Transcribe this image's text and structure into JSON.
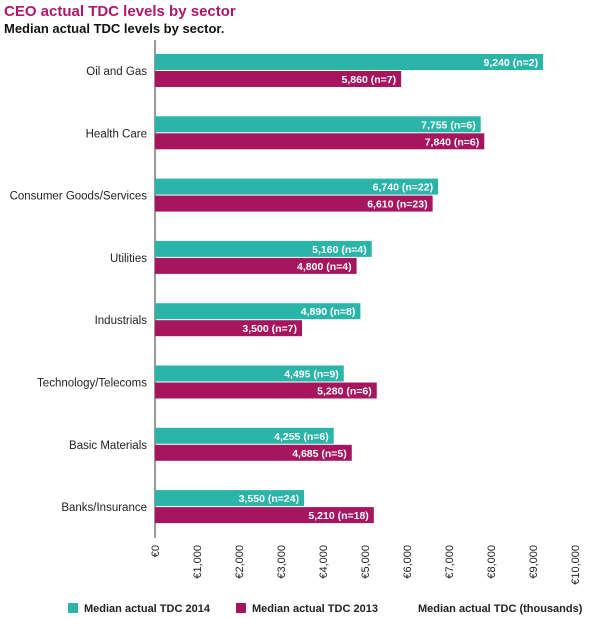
{
  "title": "CEO actual TDC levels by sector",
  "subtitle": "Median actual TDC levels by sector.",
  "colors": {
    "series_2014": "#2bb5a9",
    "series_2013": "#a5165f",
    "title": "#b0176b"
  },
  "chart_data": {
    "type": "bar",
    "orientation": "horizontal",
    "title": "CEO actual TDC levels by sector",
    "subtitle": "Median actual TDC levels by sector.",
    "categories": [
      "Oil and Gas",
      "Health Care",
      "Consumer Goods/Services",
      "Utilities",
      "Industrials",
      "Technology/Telecoms",
      "Basic Materials",
      "Banks/Insurance"
    ],
    "series": [
      {
        "name": "Median actual TDC 2014",
        "values": [
          9240,
          7755,
          6740,
          5160,
          4890,
          4495,
          4255,
          3550
        ],
        "labels": [
          "9,240 (n=2)",
          "7,755 (n=6)",
          "6,740 (n=22)",
          "5,160 (n=4)",
          "4,890 (n=8)",
          "4,495 (n=9)",
          "4,255 (n=6)",
          "3,550 (n=24)"
        ]
      },
      {
        "name": "Median actual TDC 2013",
        "values": [
          5860,
          7840,
          6610,
          4800,
          3500,
          5280,
          4685,
          5210
        ],
        "labels": [
          "5,860 (n=7)",
          "7,840 (n=6)",
          "6,610 (n=23)",
          "4,800 (n=4)",
          "3,500 (n=7)",
          "5,280 (n=6)",
          "4,685 (n=5)",
          "5,210 (n=18)"
        ]
      }
    ],
    "xlim": [
      0,
      10000
    ],
    "xticks": [
      0,
      1000,
      2000,
      3000,
      4000,
      5000,
      6000,
      7000,
      8000,
      9000,
      10000
    ],
    "xtick_labels": [
      "€0",
      "€1,000",
      "€2,000",
      "€3,000",
      "€4,000",
      "€5,000",
      "€6,000",
      "€7,000",
      "€8,000",
      "€9,000",
      "€10,000"
    ],
    "xlabel": "Median actual TDC (thousands)",
    "legend_position": "bottom"
  }
}
